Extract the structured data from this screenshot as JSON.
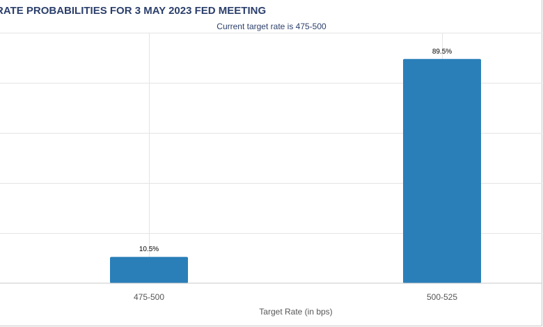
{
  "chart_data": {
    "type": "bar",
    "title": "RATE PROBABILITIES FOR 3 MAY 2023 FED MEETING",
    "subtitle": "Current target rate is 475-500",
    "xlabel": "Target Rate (in bps)",
    "ylabel": "",
    "categories": [
      "475-500",
      "500-525"
    ],
    "values": [
      10.5,
      89.5
    ],
    "data_labels": [
      "10.5%",
      "89.5%"
    ],
    "ylim": [
      0,
      100
    ],
    "grid": true,
    "bar_color": "#2a7fb8"
  }
}
